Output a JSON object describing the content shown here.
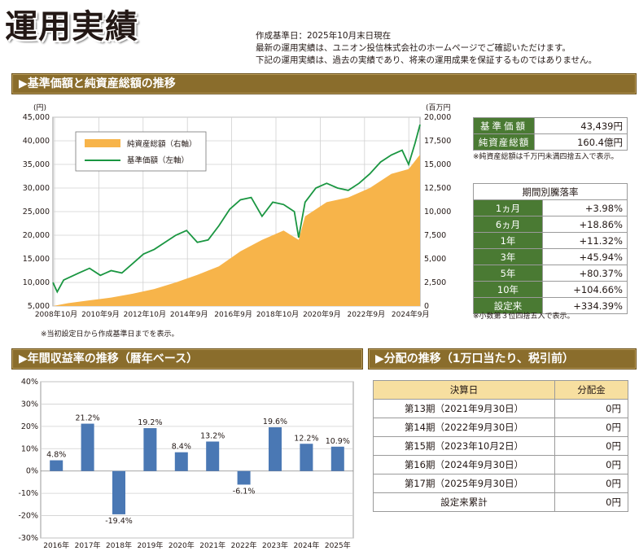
{
  "page_title": "運用実績",
  "notes": [
    "作成基準日：2025年10月末日現在",
    "最新の運用実績は、ユニオン投信株式会社のホームページでご確認いただけます。",
    "下記の運用実績は、過去の実績であり、将来の運用成果を保証するものではありません。"
  ],
  "section1_title": "▶基準価額と純資産総額の推移",
  "section2_title": "▶年間収益率の推移（暦年ベース）",
  "section3_title": "▶分配の推移（1万口当たり、税引前）",
  "summary": {
    "rows": [
      {
        "label": "基準価額",
        "value": "43,439円"
      },
      {
        "label": "純資産総額",
        "value": "160.4億円"
      }
    ],
    "note": "※純資産総額は千万円未満四捨五入で表示。"
  },
  "period_returns": {
    "header": "期間別騰落率",
    "rows": [
      {
        "label": "1ヵ月",
        "value": "+3.98%"
      },
      {
        "label": "6ヵ月",
        "value": "+18.86%"
      },
      {
        "label": "1年",
        "value": "+11.32%"
      },
      {
        "label": "3年",
        "value": "+45.94%"
      },
      {
        "label": "5年",
        "value": "+80.37%"
      },
      {
        "label": "10年",
        "value": "+104.66%"
      },
      {
        "label": "設定来",
        "value": "+334.39%"
      }
    ],
    "note": "※小数第３位四捨五入で表示。"
  },
  "chart1_note": "※当初設定日から作成基準日までを表示。",
  "distribution": {
    "headers": [
      "決算日",
      "分配金"
    ],
    "rows": [
      {
        "date": "第13期（2021年9月30日）",
        "amount": "0円"
      },
      {
        "date": "第14期（2022年9月30日）",
        "amount": "0円"
      },
      {
        "date": "第15期（2023年10月2日）",
        "amount": "0円"
      },
      {
        "date": "第16期（2024年9月30日）",
        "amount": "0円"
      },
      {
        "date": "第17期（2025年9月30日）",
        "amount": "0円"
      },
      {
        "date": "設定来累計",
        "amount": "0円"
      }
    ]
  },
  "chart_data": [
    {
      "type": "line",
      "left_unit": "(円)",
      "right_unit": "(百万円)",
      "left_ylim": [
        5000,
        45000
      ],
      "right_ylim": [
        0,
        20000
      ],
      "left_ticks": [
        "5,000",
        "10,000",
        "15,000",
        "20,000",
        "25,000",
        "30,000",
        "35,000",
        "40,000",
        "45,000"
      ],
      "right_ticks": [
        "0",
        "2,500",
        "5,000",
        "7,500",
        "10,000",
        "12,500",
        "15,000",
        "17,500",
        "20,000"
      ],
      "x_ticks": [
        "2008年10月",
        "2010年9月",
        "2012年10月",
        "2014年9月",
        "2016年9月",
        "2018年10月",
        "2020年9月",
        "2022年9月",
        "2024年9月"
      ],
      "grid": true,
      "legend_position": "top-left",
      "colors": {
        "area": "#f7b44a",
        "line": "#1a9641"
      },
      "series": [
        {
          "name": "純資産総額（右軸）",
          "kind": "area",
          "axis": "right",
          "x": [
            2008.8,
            2009.5,
            2010.5,
            2011.5,
            2012.5,
            2013.5,
            2014.5,
            2015.5,
            2016.5,
            2017.5,
            2018.5,
            2019.5,
            2020.2,
            2020.5,
            2021.5,
            2022.5,
            2023.5,
            2024.5,
            2025.3,
            2025.83
          ],
          "values": [
            0,
            300,
            600,
            900,
            1300,
            1800,
            2500,
            3300,
            4200,
            5800,
            7000,
            8000,
            7000,
            9500,
            11000,
            11500,
            12500,
            14000,
            14500,
            16040
          ]
        },
        {
          "name": "基準価額（左軸）",
          "kind": "line",
          "axis": "left",
          "x": [
            2008.8,
            2009.0,
            2009.3,
            2010.0,
            2010.5,
            2011.0,
            2011.5,
            2012.0,
            2012.5,
            2013.0,
            2013.5,
            2014.0,
            2014.5,
            2015.0,
            2015.5,
            2016.0,
            2016.5,
            2017.0,
            2017.5,
            2018.0,
            2018.5,
            2019.0,
            2019.5,
            2020.0,
            2020.2,
            2020.5,
            2021.0,
            2021.5,
            2022.0,
            2022.5,
            2023.0,
            2023.5,
            2024.0,
            2024.5,
            2025.0,
            2025.3,
            2025.6,
            2025.83
          ],
          "values": [
            10000,
            8000,
            10500,
            12000,
            13000,
            11500,
            12500,
            12000,
            14000,
            16000,
            17000,
            18500,
            20000,
            21000,
            18500,
            19000,
            22000,
            25500,
            27500,
            28000,
            24000,
            27000,
            26500,
            25000,
            19500,
            27000,
            30000,
            31000,
            30000,
            29500,
            31000,
            33000,
            35500,
            37000,
            38000,
            35000,
            39500,
            43439
          ]
        }
      ]
    },
    {
      "type": "bar",
      "categories": [
        "2016年",
        "2017年",
        "2018年",
        "2019年",
        "2020年",
        "2021年",
        "2022年",
        "2023年",
        "2024年",
        "2025年"
      ],
      "values": [
        4.8,
        21.2,
        -19.4,
        19.2,
        8.4,
        13.2,
        -6.1,
        19.6,
        12.2,
        10.9
      ],
      "labels": [
        "4.8%",
        "21.2%",
        "-19.4%",
        "19.2%",
        "8.4%",
        "13.2%",
        "-6.1%",
        "19.6%",
        "12.2%",
        "10.9%"
      ],
      "ylim": [
        -30,
        40
      ],
      "y_ticks": [
        "40%",
        "30%",
        "20%",
        "10%",
        "0%",
        "-10%",
        "-20%",
        "-30%"
      ],
      "grid": true,
      "colors": {
        "bar": "#4a78b4"
      }
    }
  ]
}
